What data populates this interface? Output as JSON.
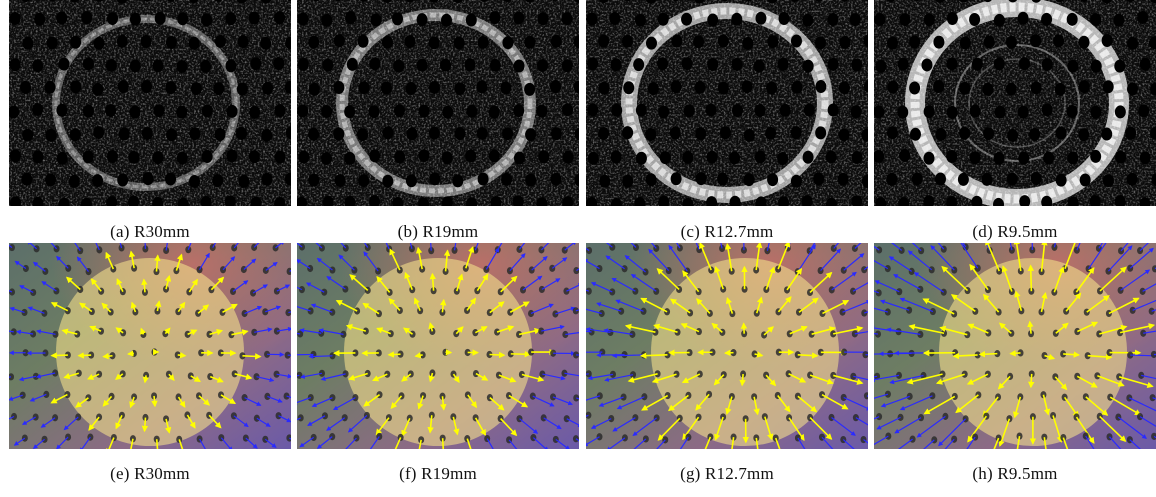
{
  "figure": {
    "top_row": [
      {
        "label": "(a)",
        "text": "R30mm",
        "ring_intensity": 0.35
      },
      {
        "label": "(b)",
        "text": "R19mm",
        "ring_intensity": 0.55
      },
      {
        "label": "(c)",
        "text": "R12.7mm",
        "ring_intensity": 0.85
      },
      {
        "label": "(d)",
        "text": "R9.5mm",
        "ring_intensity": 1.0
      }
    ],
    "bottom_row": [
      {
        "label": "(e)",
        "text": "R30mm",
        "vector_scale": 0.5
      },
      {
        "label": "(f)",
        "text": "R19mm",
        "vector_scale": 0.65
      },
      {
        "label": "(g)",
        "text": "R12.7mm",
        "vector_scale": 0.85
      },
      {
        "label": "(h)",
        "text": "R9.5mm",
        "vector_scale": 1.0
      }
    ],
    "colors": {
      "inside_arrow": "#ffff00",
      "outside_arrow": "#2a2aff",
      "disk_fill": "#f4e08a",
      "ring": "#ffffff"
    }
  }
}
